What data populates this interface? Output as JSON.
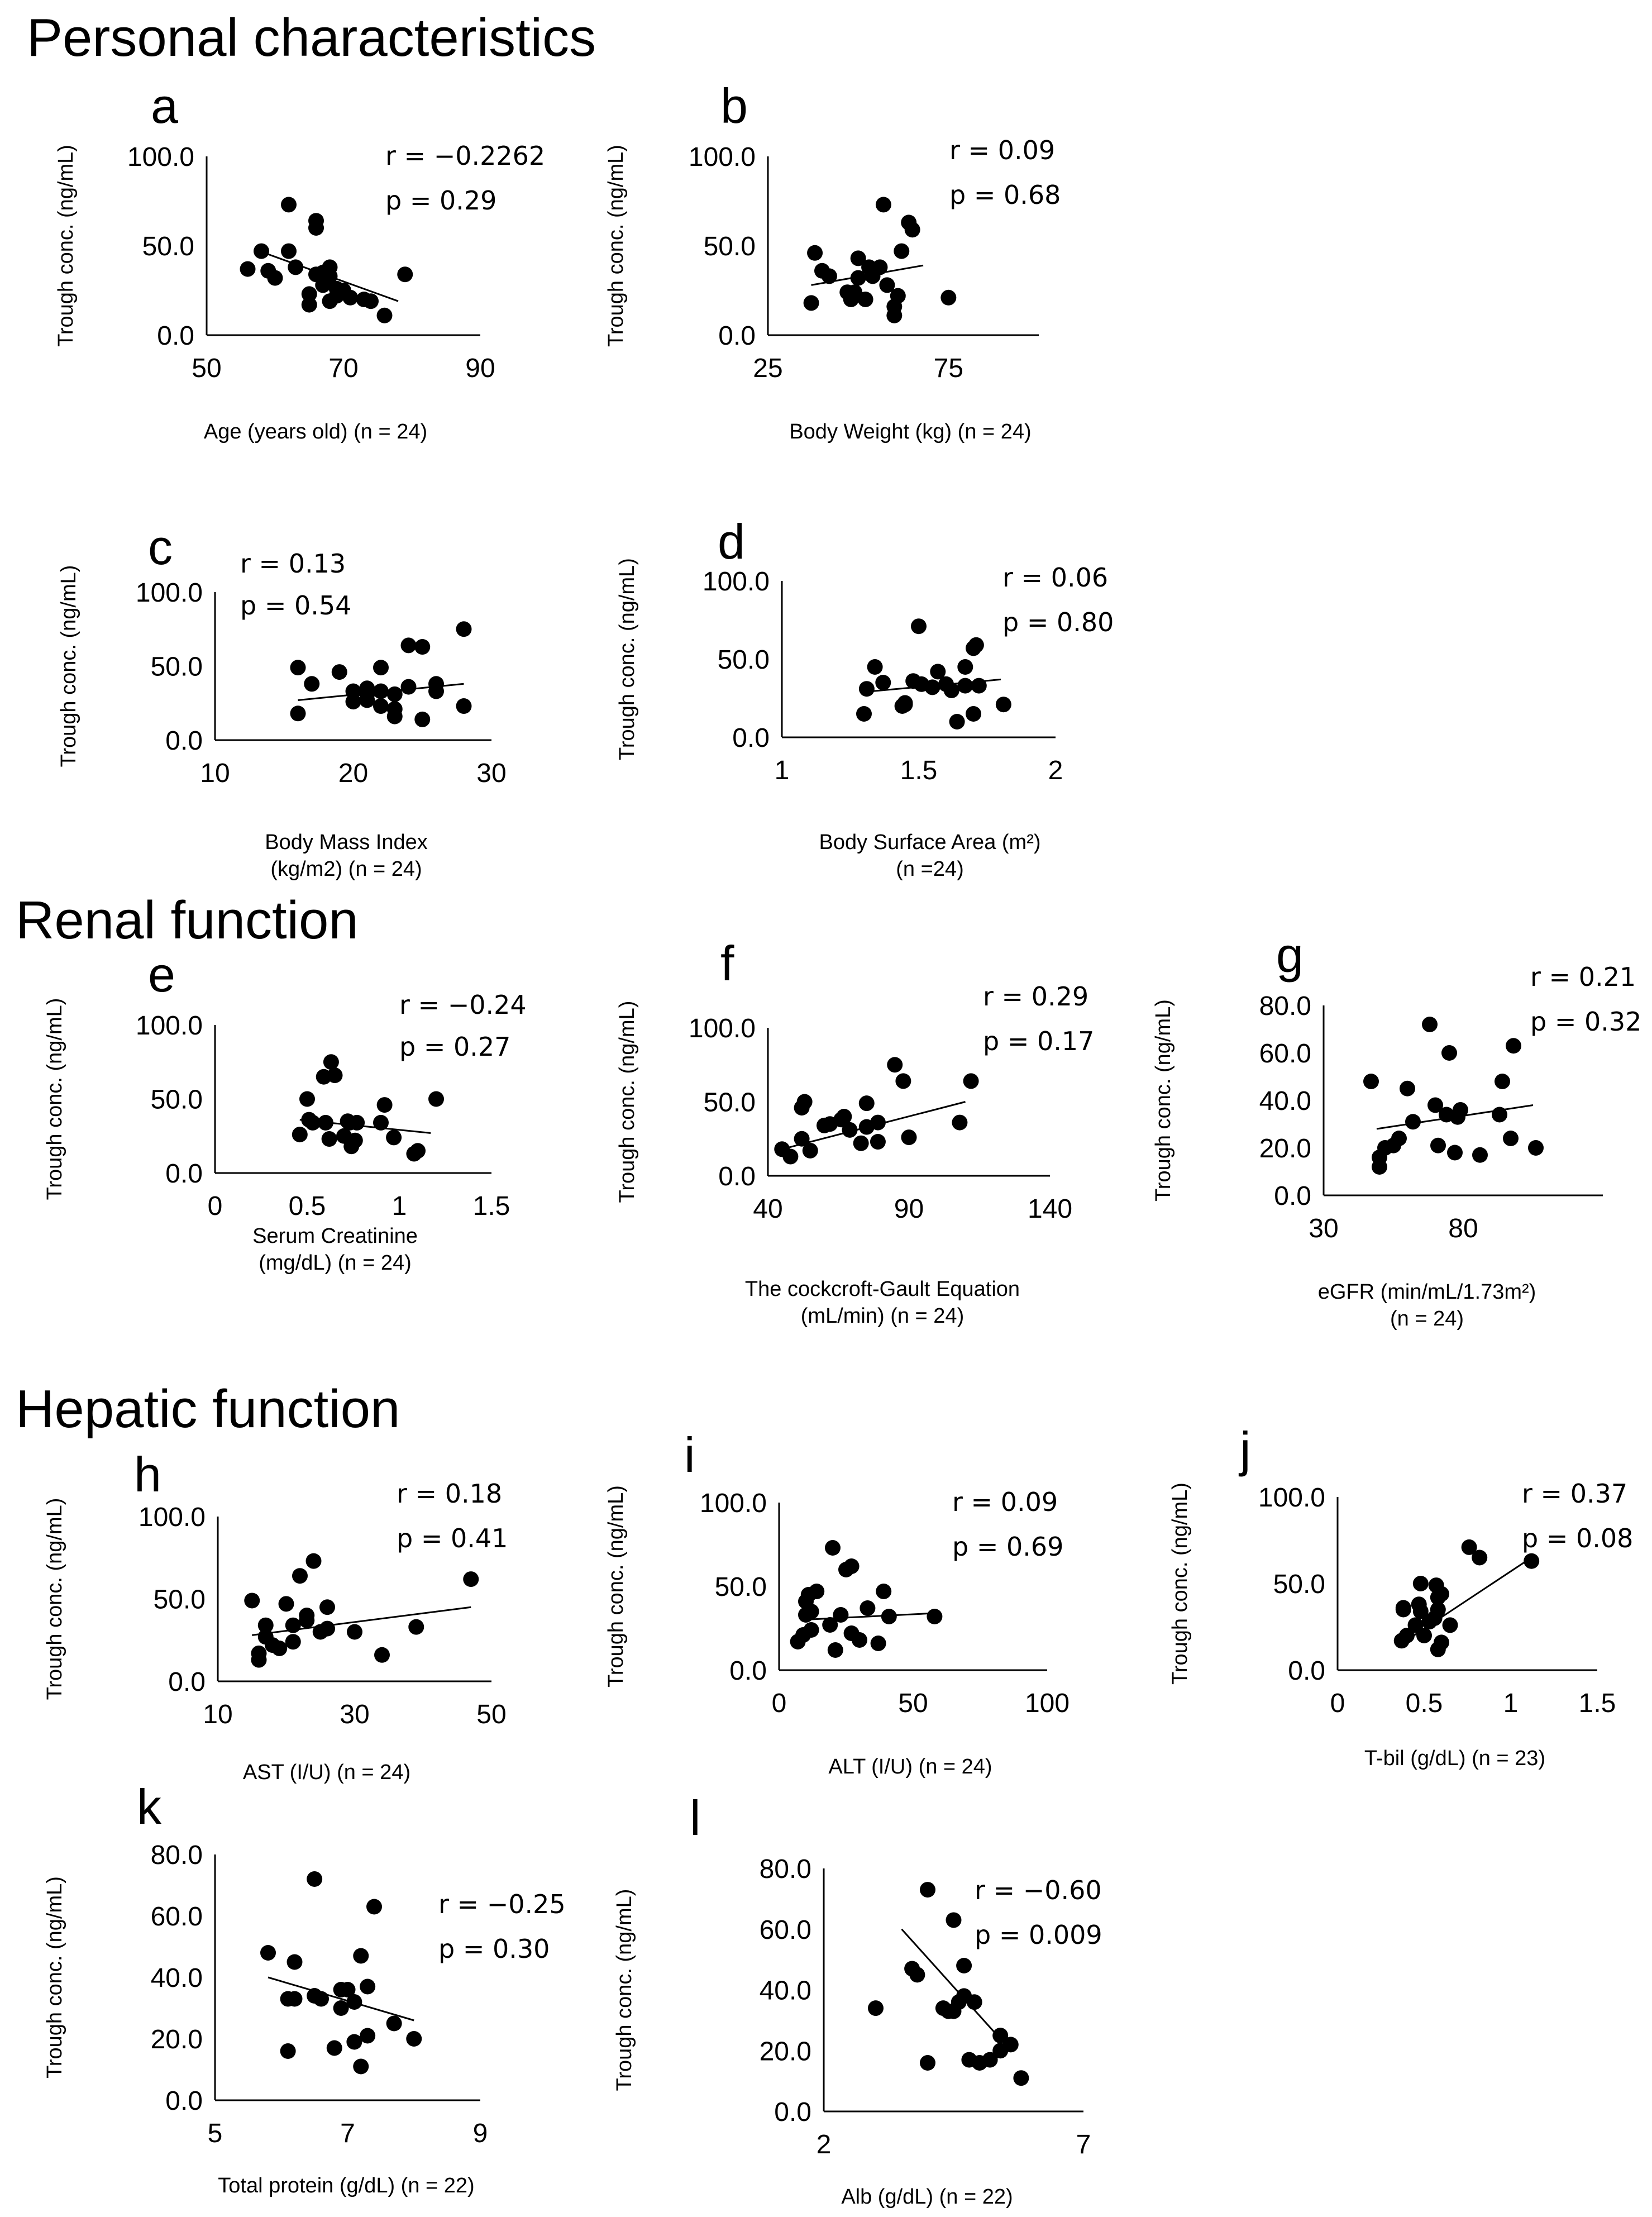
{
  "figure": {
    "sections": {
      "personal": "Personal characteristics",
      "renal": "Renal function",
      "hepatic": "Hepatic function"
    }
  },
  "chart_data": [
    {
      "panel": "a",
      "type": "scatter",
      "ylabel": "Trough conc. (ng/mL)",
      "xlabel_lines": [
        "Age (years old) (n = 24)"
      ],
      "stats": [
        "r = −0.2262",
        "p = 0.29"
      ],
      "xlim": [
        50,
        90
      ],
      "xticks": [
        "50",
        "70",
        "90"
      ],
      "ylim": [
        0,
        100
      ],
      "yticks": [
        "0.0",
        "50.0",
        "100.0"
      ],
      "trendline": [
        [
          57,
          48
        ],
        [
          78,
          19
        ]
      ],
      "x": [
        56,
        58,
        59,
        60,
        62,
        62,
        63,
        65,
        65,
        66,
        66,
        66,
        67,
        67,
        68,
        68,
        68,
        69,
        69,
        70,
        71,
        73,
        74,
        76,
        79
      ],
      "y": [
        37,
        47,
        36,
        32,
        73,
        47,
        38,
        23,
        17,
        64,
        60,
        34,
        35,
        28,
        19,
        38,
        33,
        22,
        26,
        25,
        21,
        20,
        19,
        11,
        34
      ]
    },
    {
      "panel": "b",
      "type": "scatter",
      "ylabel": "Trough conc. (ng/mL)",
      "xlabel_lines": [
        "Body Weight (kg) (n = 24)"
      ],
      "stats": [
        "r = 0.09",
        "p = 0.68"
      ],
      "xlim": [
        25,
        100
      ],
      "xticks": [
        "25",
        "75"
      ],
      "ylim": [
        0,
        100
      ],
      "yticks": [
        "0.0",
        "50.0",
        "100.0"
      ],
      "trendline": [
        [
          37,
          28
        ],
        [
          68,
          39
        ]
      ],
      "x": [
        37,
        38,
        40,
        42,
        47,
        48,
        49,
        50,
        50,
        52,
        53,
        54,
        56,
        57,
        58,
        60,
        60,
        61,
        62,
        64,
        65,
        75
      ],
      "y": [
        18,
        46,
        36,
        33,
        24,
        20,
        24,
        43,
        32,
        20,
        38,
        33,
        38,
        73,
        28,
        16,
        11,
        22,
        47,
        63,
        59,
        21
      ]
    },
    {
      "panel": "c",
      "type": "scatter",
      "ylabel": "Trough conc. (ng/mL)",
      "xlabel_lines": [
        "Body Mass Index",
        "(kg/m2) (n = 24)"
      ],
      "stats": [
        "r = 0.13",
        "p = 0.54"
      ],
      "xlim": [
        10,
        30
      ],
      "xticks": [
        "10",
        "20",
        "30"
      ],
      "ylim": [
        0,
        100
      ],
      "yticks": [
        "0.0",
        "50.0",
        "100.0"
      ],
      "trendline": [
        [
          16,
          27
        ],
        [
          28,
          38
        ]
      ],
      "x": [
        16,
        16,
        17,
        19,
        20,
        20,
        21,
        21,
        21,
        22,
        22,
        22,
        23,
        23,
        23,
        24,
        24,
        25,
        25,
        26,
        26,
        28,
        28
      ],
      "y": [
        18,
        49,
        38,
        46,
        26,
        33,
        31,
        27,
        35,
        33,
        23,
        49,
        16,
        21,
        31,
        36,
        64,
        14,
        63,
        38,
        33,
        75,
        23
      ]
    },
    {
      "panel": "d",
      "type": "scatter",
      "ylabel": "Trough conc. (ng/mL)",
      "xlabel_lines": [
        "Body Surface Area (m²)",
        "(n =24)"
      ],
      "stats": [
        "r = 0.06",
        "p = 0.80"
      ],
      "xlim": [
        1,
        2
      ],
      "xticks": [
        "1",
        "1.5",
        "2"
      ],
      "ylim": [
        0,
        100
      ],
      "yticks": [
        "0.0",
        "50.0",
        "100.0"
      ],
      "trendline": [
        [
          1.3,
          29
        ],
        [
          1.8,
          37
        ]
      ],
      "x": [
        1.3,
        1.31,
        1.34,
        1.37,
        1.44,
        1.45,
        1.45,
        1.48,
        1.5,
        1.51,
        1.55,
        1.57,
        1.6,
        1.62,
        1.64,
        1.67,
        1.67,
        1.7,
        1.7,
        1.71,
        1.72,
        1.81
      ],
      "y": [
        15,
        31,
        45,
        35,
        20,
        21,
        22,
        36,
        71,
        34,
        32,
        42,
        34,
        30,
        10,
        45,
        33,
        15,
        57,
        59,
        33,
        21
      ]
    },
    {
      "panel": "e",
      "type": "scatter",
      "ylabel": "Trough conc. (ng/mL)",
      "xlabel_lines": [
        "Serum Creatinine",
        "(mg/dL) (n = 24)"
      ],
      "stats": [
        "r = −0.24",
        "p = 0.27"
      ],
      "xlim": [
        0,
        1.5
      ],
      "xticks": [
        "0",
        "0.5",
        "1",
        "1.5"
      ],
      "ylim": [
        0,
        100
      ],
      "yticks": [
        "0.0",
        "50.0",
        "100.0"
      ],
      "trendline": [
        [
          0.46,
          36
        ],
        [
          1.17,
          27
        ]
      ],
      "x": [
        0.46,
        0.5,
        0.51,
        0.53,
        0.59,
        0.6,
        0.62,
        0.63,
        0.65,
        0.7,
        0.72,
        0.73,
        0.74,
        0.76,
        0.77,
        0.9,
        0.92,
        0.97,
        1.08,
        1.1,
        1.2
      ],
      "y": [
        26,
        50,
        36,
        34,
        65,
        34,
        23,
        75,
        66,
        25,
        35,
        34,
        18,
        22,
        34,
        34,
        46,
        24,
        13,
        15,
        50
      ]
    },
    {
      "panel": "f",
      "type": "scatter",
      "ylabel": "Trough conc. (ng/mL)",
      "xlabel_lines": [
        "The cockcroft-Gault Equation",
        "(mL/min) (n = 24)"
      ],
      "stats": [
        "r = 0.29",
        "p = 0.17"
      ],
      "xlim": [
        40,
        140
      ],
      "xticks": [
        "40",
        "90",
        "140"
      ],
      "ylim": [
        0,
        100
      ],
      "yticks": [
        "0.0",
        "50.0",
        "100.0"
      ],
      "trendline": [
        [
          45,
          18
        ],
        [
          110,
          50
        ]
      ],
      "x": [
        45,
        48,
        52,
        52,
        53,
        55,
        60,
        62,
        66,
        67,
        69,
        73,
        75,
        75,
        79,
        79,
        85,
        88,
        90,
        108,
        112
      ],
      "y": [
        18,
        13,
        25,
        46,
        50,
        17,
        34,
        35,
        38,
        40,
        31,
        22,
        33,
        49,
        36,
        23,
        75,
        64,
        26,
        36,
        64
      ]
    },
    {
      "panel": "g",
      "type": "scatter",
      "ylabel": "Trough conc. (ng/mL)",
      "xlabel_lines": [
        "eGFR (min/mL/1.73m²)",
        "(n = 24)"
      ],
      "stats": [
        "r = 0.21",
        "p = 0.32"
      ],
      "xlim": [
        30,
        130
      ],
      "xticks": [
        "30",
        "80"
      ],
      "ylim": [
        0,
        80
      ],
      "yticks": [
        "0.0",
        "20.0",
        "40.0",
        "60.0",
        "80.0"
      ],
      "trendline": [
        [
          49,
          28
        ],
        [
          105,
          38
        ]
      ],
      "x": [
        47,
        50,
        50,
        52,
        55,
        57,
        60,
        62,
        68,
        70,
        71,
        74,
        75,
        77,
        78,
        79,
        86,
        93,
        94,
        97,
        98,
        106
      ],
      "y": [
        48,
        12,
        16,
        20,
        21,
        24,
        45,
        31,
        72,
        38,
        21,
        34,
        60,
        18,
        33,
        36,
        17,
        34,
        48,
        24,
        63,
        20
      ]
    },
    {
      "panel": "h",
      "type": "scatter",
      "ylabel": "Trough conc. (ng/mL)",
      "xlabel_lines": [
        "AST (I/U) (n = 24)"
      ],
      "stats": [
        "r = 0.18",
        "p = 0.41"
      ],
      "xlim": [
        10,
        50
      ],
      "xticks": [
        "10",
        "30",
        "50"
      ],
      "ylim": [
        0,
        100
      ],
      "yticks": [
        "0.0",
        "50.0",
        "100.0"
      ],
      "trendline": [
        [
          15,
          28
        ],
        [
          47,
          45
        ]
      ],
      "x": [
        15,
        16,
        16,
        17,
        17,
        18,
        19,
        20,
        21,
        21,
        22,
        23,
        23,
        24,
        25,
        26,
        26,
        30,
        34,
        39,
        47
      ],
      "y": [
        49,
        13,
        17,
        27,
        34,
        22,
        20,
        47,
        34,
        24,
        64,
        40,
        37,
        73,
        30,
        32,
        45,
        30,
        16,
        33,
        62
      ]
    },
    {
      "panel": "i",
      "type": "scatter",
      "ylabel": "Trough conc. (ng/mL)",
      "xlabel_lines": [
        "ALT (I/U) (n = 24)"
      ],
      "stats": [
        "r = 0.09",
        "p = 0.69"
      ],
      "xlim": [
        0,
        100
      ],
      "xticks": [
        "0",
        "50",
        "100"
      ],
      "ylim": [
        0,
        100
      ],
      "yticks": [
        "0.0",
        "50.0",
        "100.0"
      ],
      "trendline": [
        [
          8,
          30
        ],
        [
          58,
          34
        ]
      ],
      "x": [
        7,
        9,
        10,
        10,
        11,
        12,
        12,
        14,
        19,
        20,
        21,
        23,
        25,
        27,
        27,
        30,
        33,
        37,
        39,
        41,
        58
      ],
      "y": [
        17,
        21,
        33,
        41,
        45,
        35,
        24,
        47,
        27,
        73,
        12,
        33,
        60,
        62,
        22,
        18,
        37,
        16,
        47,
        32,
        32
      ]
    },
    {
      "panel": "j",
      "type": "scatter",
      "ylabel": "Trough conc. (ng/mL)",
      "xlabel_lines": [
        "T-bil (g/dL) (n = 23)"
      ],
      "stats": [
        "r = 0.37",
        "p = 0.08"
      ],
      "xlim": [
        0,
        1.5
      ],
      "xticks": [
        "0",
        "0.5",
        "1",
        "1.5"
      ],
      "ylim": [
        0,
        100
      ],
      "yticks": [
        "0.0",
        "50.0",
        "100.0"
      ],
      "trendline": [
        [
          0.38,
          16
        ],
        [
          1.12,
          65
        ]
      ],
      "x": [
        0.37,
        0.38,
        0.38,
        0.4,
        0.45,
        0.47,
        0.48,
        0.48,
        0.5,
        0.53,
        0.56,
        0.57,
        0.58,
        0.58,
        0.58,
        0.6,
        0.6,
        0.65,
        0.76,
        0.82,
        1.12
      ],
      "y": [
        17,
        35,
        36,
        20,
        26,
        38,
        50,
        34,
        20,
        28,
        30,
        49,
        12,
        35,
        42,
        44,
        16,
        26,
        71,
        65,
        63
      ]
    },
    {
      "panel": "k",
      "type": "scatter",
      "ylabel": "Trough conc. (ng/mL)",
      "xlabel_lines": [
        "Total protein (g/dL) (n = 22)"
      ],
      "stats": [
        "r = −0.25",
        "p = 0.30"
      ],
      "xlim": [
        5,
        9
      ],
      "xticks": [
        "5",
        "7",
        "9"
      ],
      "ylim": [
        0,
        80
      ],
      "yticks": [
        "0.0",
        "20.0",
        "40.0",
        "60.0",
        "80.0"
      ],
      "trendline": [
        [
          5.8,
          40
        ],
        [
          8.0,
          26
        ]
      ],
      "x": [
        5.8,
        6.1,
        6.1,
        6.2,
        6.2,
        6.5,
        6.5,
        6.6,
        6.8,
        6.9,
        6.9,
        7.0,
        7.1,
        7.1,
        7.2,
        7.2,
        7.3,
        7.3,
        7.4,
        7.7,
        8.0
      ],
      "y": [
        48,
        33,
        16,
        45,
        33,
        72,
        34,
        33,
        17,
        30,
        36,
        36,
        32,
        19,
        47,
        11,
        37,
        21,
        63,
        25,
        20
      ]
    },
    {
      "panel": "l",
      "type": "scatter",
      "ylabel": "Trough conc. (ng/mL)",
      "xlabel_lines": [
        "Alb (g/dL) (n = 22)"
      ],
      "stats": [
        "r = −0.60",
        "p = 0.009"
      ],
      "xlim": [
        2,
        7
      ],
      "xticks": [
        "2",
        "7"
      ],
      "ylim": [
        0,
        80
      ],
      "yticks": [
        "0.0",
        "20.0",
        "40.0",
        "60.0",
        "80.0"
      ],
      "trendline": [
        [
          3.5,
          60
        ],
        [
          5.5,
          22
        ]
      ],
      "x": [
        3.0,
        3.7,
        3.8,
        4.0,
        4.0,
        4.3,
        4.4,
        4.5,
        4.5,
        4.6,
        4.7,
        4.7,
        4.8,
        4.9,
        5.0,
        5.2,
        5.4,
        5.4,
        5.6,
        5.8
      ],
      "y": [
        34,
        47,
        45,
        73,
        16,
        34,
        33,
        63,
        33,
        36,
        38,
        48,
        17,
        36,
        16,
        17,
        20,
        25,
        22,
        11
      ]
    }
  ]
}
